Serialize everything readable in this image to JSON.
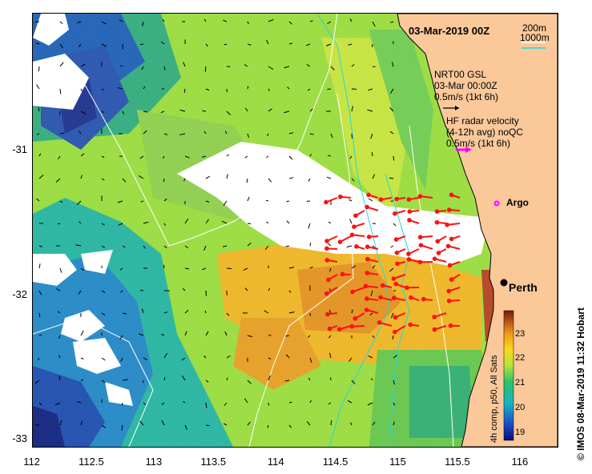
{
  "title": "03-Mar-2019 00Z",
  "depth_legend": {
    "contour_200": "200m",
    "contour_1000": "1000m",
    "color_200": "#ffffff",
    "color_1000": "#21d8e0"
  },
  "model_legend": {
    "line1": "NRT00 GSL",
    "line2": "03-Mar 00:00Z",
    "line3": "0.5m/s (1kt 6h)",
    "arrow_color": "#000000"
  },
  "radar_legend": {
    "line1": "HF radar velocity",
    "line2": "(4-12h avg) noQC",
    "line3": "0.5m/s (1kt 6h)",
    "arrow_color": "#ff00ff"
  },
  "argo_label": "Argo",
  "city_label": "Perth",
  "side_label": "© IMOS 08-Mar-2019 11:32 Hobart",
  "colorbar": {
    "label": "4h comp, p50, All Sats",
    "ticks": [
      "19",
      "20",
      "21",
      "22",
      "23"
    ],
    "range": [
      18.7,
      23.9
    ]
  },
  "axes": {
    "x_ticks": [
      "112",
      "112.5",
      "113",
      "113.5",
      "114",
      "114.5",
      "115",
      "115.5",
      "116"
    ],
    "y_ticks": [
      "-31",
      "-32",
      "-33"
    ],
    "x_range": [
      112,
      116.3
    ],
    "y_range": [
      -33.05,
      -30.05
    ]
  },
  "colors": {
    "land": "#fbc89a",
    "radar_arrow": "#ff1010"
  }
}
